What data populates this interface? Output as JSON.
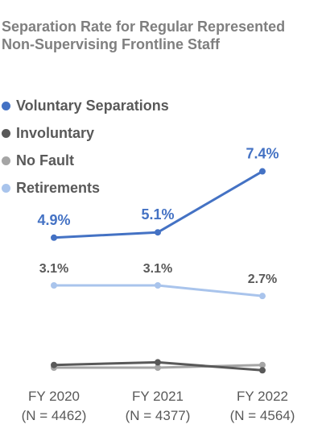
{
  "chart_data": {
    "type": "line",
    "title_lines": [
      "Separation Rate for Regular Represented",
      "Non-Supervising Frontline Staff"
    ],
    "categories": [
      "FY 2020",
      "FY 2021",
      "FY 2022"
    ],
    "category_sublabels": [
      "(N = 4462)",
      "(N = 4377)",
      "(N = 4564)"
    ],
    "ylim": [
      0,
      8
    ],
    "grid": false,
    "legend_position": "top-left",
    "series": [
      {
        "name": "Voluntary Separations",
        "color": "#4472c4",
        "values": [
          4.9,
          5.1,
          7.4
        ],
        "labels": [
          "4.9%",
          "5.1%",
          "7.4%"
        ],
        "label_color": "#4472c4"
      },
      {
        "name": "Involuntary",
        "color": "#595959",
        "values": [
          0.1,
          0.2,
          -0.1
        ],
        "labels": []
      },
      {
        "name": "No Fault",
        "color": "#a5a5a5",
        "values": [
          0.0,
          0.0,
          0.1
        ],
        "labels": []
      },
      {
        "name": "Retirements",
        "color": "#a9c4ec",
        "values": [
          3.1,
          3.1,
          2.7
        ],
        "labels": [
          "3.1%",
          "3.1%",
          "2.7%"
        ],
        "label_color": "#595959"
      }
    ]
  }
}
